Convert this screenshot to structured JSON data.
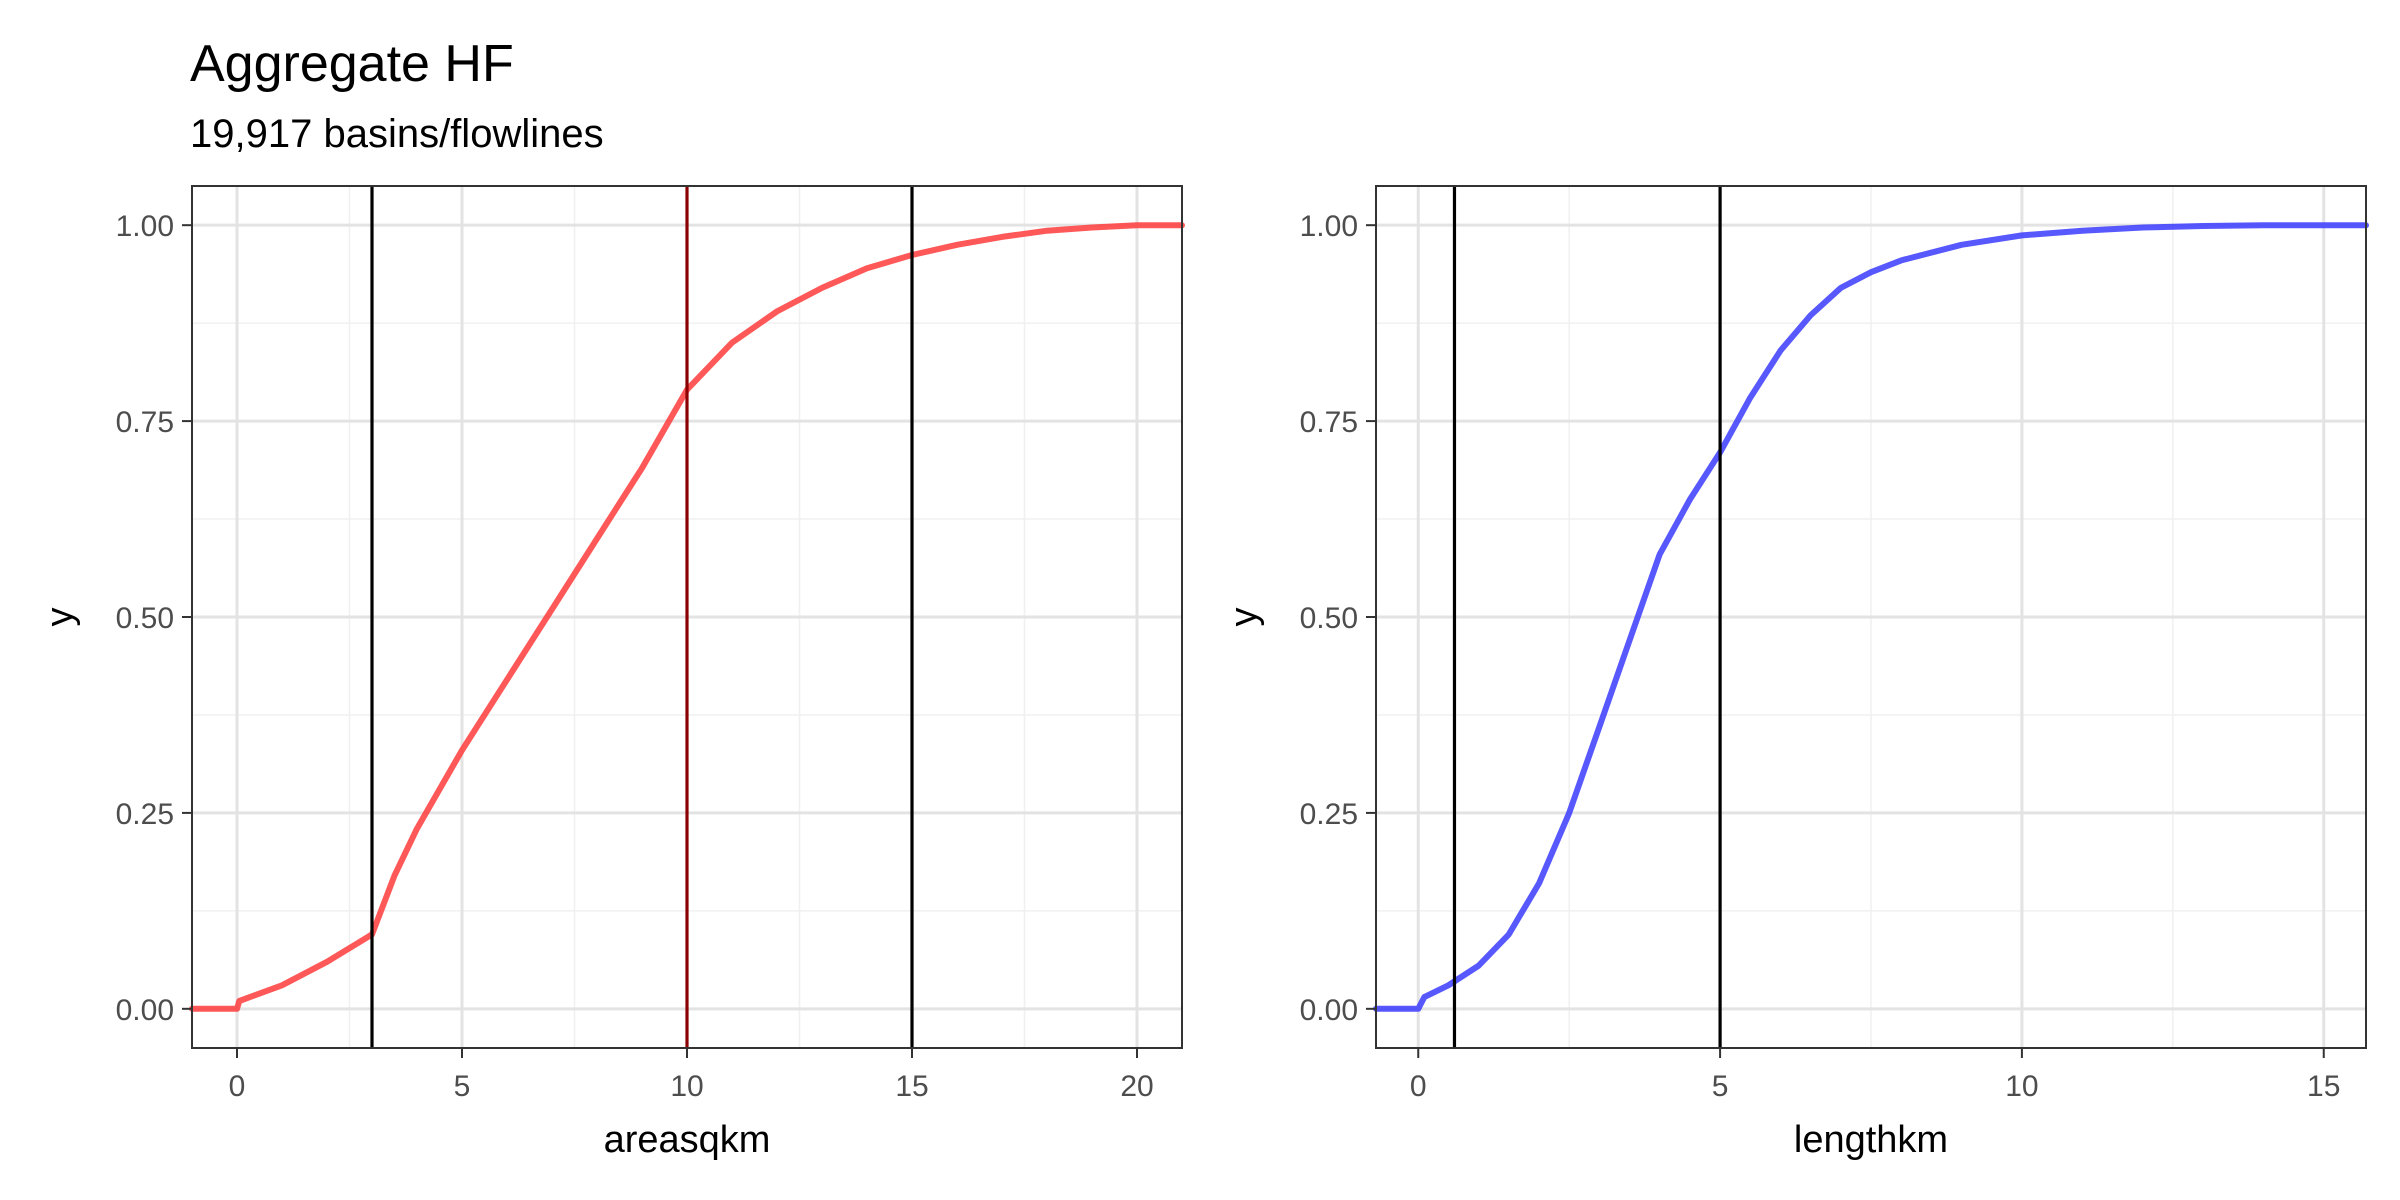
{
  "title": "Aggregate HF",
  "subtitle": "19,917 basins/flowlines",
  "chart_data": [
    {
      "type": "line",
      "xlabel": "areasqkm",
      "ylabel": "y",
      "xlim": [
        -1,
        21
      ],
      "ylim": [
        -0.05,
        1.05
      ],
      "xticks": [
        0,
        5,
        10,
        15,
        20
      ],
      "yticks": [
        0.0,
        0.25,
        0.5,
        0.75,
        1.0
      ],
      "ytick_labels": [
        "0.00",
        "0.25",
        "0.50",
        "0.75",
        "1.00"
      ],
      "grid": true,
      "color": "#ff3b3b",
      "vlines": [
        {
          "x": 3,
          "color": "#000000"
        },
        {
          "x": 10,
          "color": "#8b0000"
        },
        {
          "x": 15,
          "color": "#000000"
        }
      ],
      "x": [
        -1,
        0,
        0.05,
        1,
        2,
        3,
        3.5,
        4,
        5,
        6,
        7,
        8,
        9,
        10,
        10.5,
        11,
        12,
        13,
        14,
        15,
        16,
        17,
        18,
        19,
        20,
        21
      ],
      "y": [
        0,
        0,
        0.01,
        0.03,
        0.06,
        0.095,
        0.17,
        0.23,
        0.33,
        0.42,
        0.51,
        0.6,
        0.69,
        0.79,
        0.82,
        0.85,
        0.89,
        0.92,
        0.945,
        0.962,
        0.975,
        0.985,
        0.993,
        0.997,
        1.0,
        1.0
      ]
    },
    {
      "type": "line",
      "xlabel": "lengthkm",
      "ylabel": "y",
      "xlim": [
        -0.7,
        15.7
      ],
      "ylim": [
        -0.05,
        1.05
      ],
      "xticks": [
        0,
        5,
        10,
        15
      ],
      "yticks": [
        0.0,
        0.25,
        0.5,
        0.75,
        1.0
      ],
      "ytick_labels": [
        "0.00",
        "0.25",
        "0.50",
        "0.75",
        "1.00"
      ],
      "grid": true,
      "color": "#3b3bff",
      "vlines": [
        {
          "x": 0.6,
          "color": "#000000"
        },
        {
          "x": 5,
          "color": "#000000"
        }
      ],
      "x": [
        -0.7,
        0,
        0.1,
        0.5,
        1,
        1.5,
        2,
        2.5,
        3,
        3.5,
        4,
        4.5,
        5,
        5.5,
        6,
        6.5,
        7,
        7.5,
        8,
        9,
        10,
        11,
        12,
        13,
        14,
        15,
        15.7
      ],
      "y": [
        0,
        0,
        0.015,
        0.03,
        0.055,
        0.095,
        0.16,
        0.25,
        0.36,
        0.47,
        0.58,
        0.65,
        0.71,
        0.78,
        0.84,
        0.885,
        0.92,
        0.94,
        0.955,
        0.975,
        0.987,
        0.993,
        0.997,
        0.999,
        1.0,
        1.0,
        1.0
      ]
    }
  ]
}
